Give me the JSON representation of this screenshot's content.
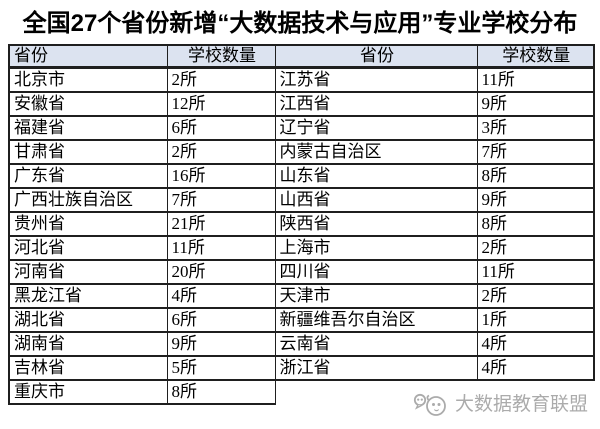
{
  "title": "全国27个省份新增“大数据技术与应用”专业学校分布",
  "table": {
    "headers": [
      "省份",
      "学校数量",
      "省份",
      "学校数量"
    ],
    "rows": [
      [
        "北京市",
        "2所",
        "江苏省",
        "11所"
      ],
      [
        "安徽省",
        "12所",
        "江西省",
        "9所"
      ],
      [
        "福建省",
        "6所",
        "辽宁省",
        "3所"
      ],
      [
        "甘肃省",
        "2所",
        "内蒙古自治区",
        "7所"
      ],
      [
        "广东省",
        "16所",
        "山东省",
        "8所"
      ],
      [
        "广西壮族自治区",
        "7所",
        "山西省",
        "9所"
      ],
      [
        "贵州省",
        "21所",
        "陕西省",
        "8所"
      ],
      [
        "河北省",
        "11所",
        "上海市",
        "2所"
      ],
      [
        "河南省",
        "20所",
        "四川省",
        "11所"
      ],
      [
        "黑龙江省",
        "4所",
        "天津市",
        "2所"
      ],
      [
        "湖北省",
        "6所",
        "新疆维吾尔自治区",
        "1所"
      ],
      [
        "湖南省",
        "9所",
        "云南省",
        "4所"
      ],
      [
        "吉林省",
        "5所",
        "浙江省",
        "4所"
      ],
      [
        "重庆市",
        "8所",
        "",
        ""
      ]
    ]
  },
  "watermark": {
    "text": "大数据教育联盟",
    "logo": "panda-chat-logo-icon"
  },
  "colors": {
    "header_bg": "#dce3f0",
    "border": "#1f1f1f",
    "watermark": "#a3a3a3",
    "title_text": "#000000"
  }
}
